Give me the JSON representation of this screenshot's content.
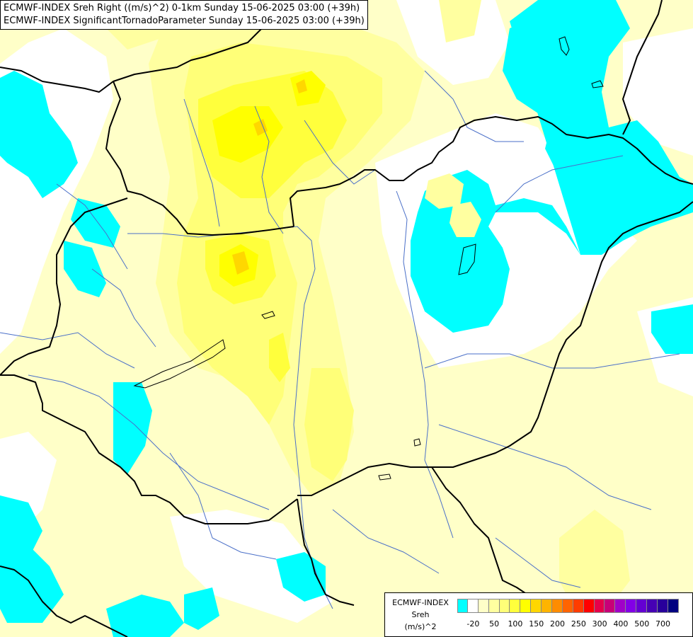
{
  "header": {
    "line1": "ECMWF-INDEX Sreh Right ((m/s)^2) 0-1km Sunday 15-06-2025 03:00 (+39h)",
    "line2": "ECMWF-INDEX SignificantTornadoParameter Sunday 15-06-2025 03:00 (+39h)"
  },
  "legend": {
    "title1": "ECMWF-INDEX",
    "title2": "Sreh",
    "title3": "(m/s)^2",
    "colors": [
      "#00ffff",
      "#ffffff",
      "#ffffc8",
      "#ffffa0",
      "#ffff78",
      "#ffff3c",
      "#ffff00",
      "#ffd700",
      "#ffb400",
      "#ff8c00",
      "#ff6400",
      "#ff3c00",
      "#ff0000",
      "#e6004b",
      "#c80078",
      "#a000c8",
      "#8200e6",
      "#6400d2",
      "#4600b4",
      "#28009b",
      "#000080"
    ],
    "ticks": [
      "-20",
      "50",
      "100",
      "150",
      "200",
      "250",
      "300",
      "400",
      "500",
      "700"
    ]
  },
  "map_fields": {
    "cyan_color": "#00ffff",
    "white_color": "#ffffff",
    "pale_color": "#ffffc8",
    "light_color": "#ffffa0",
    "mid_color": "#ffff78",
    "strong_color": "#ffff3c",
    "peak_color": "#ffff00",
    "max_color": "#ffd700",
    "border_color": "#000000",
    "river_color": "#4a6fc8"
  }
}
